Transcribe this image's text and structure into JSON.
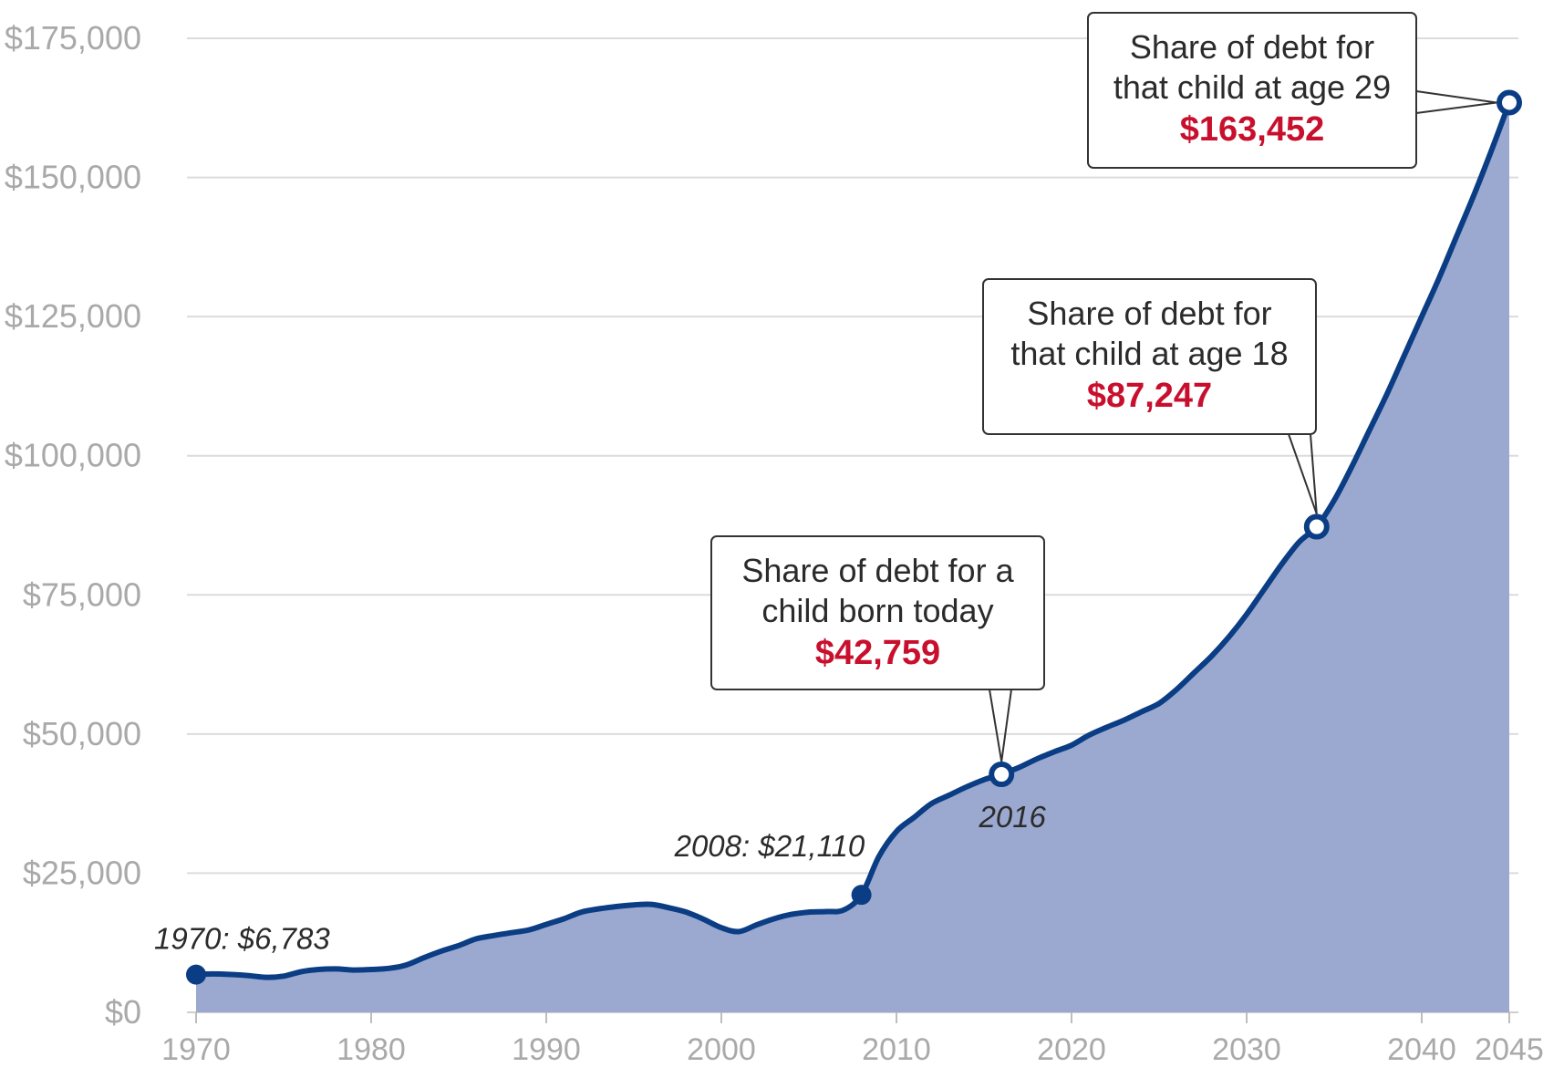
{
  "chart_data": {
    "type": "area",
    "x": [
      1970,
      1971,
      1972,
      1973,
      1974,
      1975,
      1976,
      1977,
      1978,
      1979,
      1980,
      1981,
      1982,
      1983,
      1984,
      1985,
      1986,
      1987,
      1988,
      1989,
      1990,
      1991,
      1992,
      1993,
      1994,
      1995,
      1996,
      1997,
      1998,
      1999,
      2000,
      2001,
      2002,
      2003,
      2004,
      2005,
      2006,
      2007,
      2008,
      2009,
      2010,
      2011,
      2012,
      2013,
      2014,
      2015,
      2016,
      2017,
      2018,
      2019,
      2020,
      2021,
      2022,
      2023,
      2024,
      2025,
      2026,
      2027,
      2028,
      2029,
      2030,
      2031,
      2032,
      2033,
      2034,
      2035,
      2036,
      2037,
      2038,
      2039,
      2040,
      2041,
      2042,
      2043,
      2044,
      2045
    ],
    "series": [
      {
        "values": [
          6783,
          6900,
          6800,
          6600,
          6300,
          6500,
          7300,
          7700,
          7800,
          7600,
          7700,
          7900,
          8500,
          9800,
          11000,
          12000,
          13200,
          13800,
          14300,
          14800,
          15800,
          16800,
          18000,
          18600,
          19000,
          19300,
          19400,
          18800,
          18000,
          16700,
          15200,
          14500,
          15700,
          16800,
          17600,
          18000,
          18100,
          18400,
          21110,
          28000,
          32500,
          35000,
          37500,
          39000,
          40500,
          41800,
          42759,
          44000,
          45500,
          46800,
          48000,
          49800,
          51200,
          52500,
          54000,
          55500,
          58000,
          61000,
          64000,
          67500,
          71500,
          76000,
          80500,
          84500,
          87247,
          92000,
          98000,
          104500,
          111000,
          118000,
          125000,
          132000,
          139500,
          147000,
          155000,
          163452
        ]
      }
    ],
    "xlim": [
      1970,
      2045
    ],
    "ylim": [
      0,
      175000
    ],
    "xticks": [
      "1970",
      "1980",
      "1990",
      "2000",
      "2010",
      "2020",
      "2030",
      "2040",
      "2045"
    ],
    "yticks": [
      "$175,000",
      "$150,000",
      "$125,000",
      "$100,000",
      "$75,000",
      "$50,000",
      "$25,000",
      "$0"
    ],
    "grid": true,
    "annotations": {
      "start_label": "1970: $6,783",
      "mid_label": "2008: $21,110",
      "year_label": "2016",
      "callouts": [
        {
          "lines": [
            "Share of debt for a",
            "child born today"
          ],
          "value": "$42,759",
          "x": 2016,
          "y": 42759
        },
        {
          "lines": [
            "Share of debt for",
            "that child at age 18"
          ],
          "value": "$87,247",
          "x": 2034,
          "y": 87247
        },
        {
          "lines": [
            "Share of debt for",
            "that child at age 29"
          ],
          "value": "$163,452",
          "x": 2045,
          "y": 163452
        }
      ]
    },
    "colors": {
      "line": "#0b3d84",
      "area": "#9ba9d0",
      "highlight": "#c8102e",
      "grid": "#dcdcdc",
      "axis_text": "#a9a9a9"
    }
  }
}
